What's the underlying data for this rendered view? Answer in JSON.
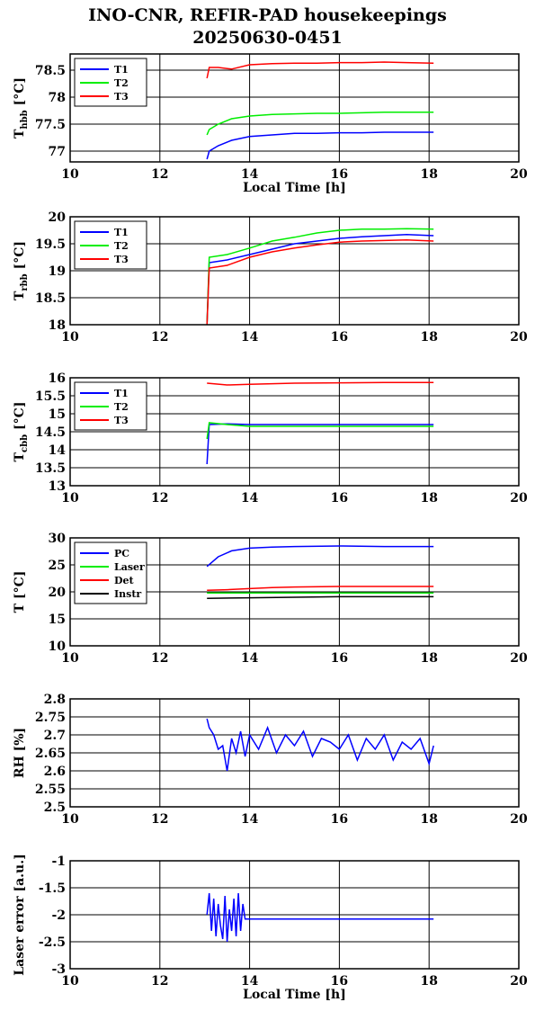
{
  "title_line1": "INO-CNR, REFIR-PAD housekeepings",
  "title_line2": "20250630-0451",
  "colors": {
    "blue": "#0000ff",
    "green": "#00ee00",
    "red": "#ff0000",
    "black": "#000000"
  },
  "chart_data": [
    {
      "type": "line",
      "ylabel": "T_hbb [°C]",
      "ylabel_main": "T",
      "ylabel_sub": "hbb",
      "ylabel_unit": "[°C]",
      "xlabel": "Local Time [h]",
      "xlim": [
        10,
        20
      ],
      "ylim": [
        76.8,
        78.8
      ],
      "x_ticks": [
        "10",
        "12",
        "14",
        "16",
        "18",
        "20"
      ],
      "y_ticks": [
        {
          "v": 77,
          "label": "77"
        },
        {
          "v": 77.5,
          "label": "77.5"
        },
        {
          "v": 78,
          "label": "78"
        },
        {
          "v": 78.5,
          "label": "78.5"
        }
      ],
      "grid": true,
      "legend_position": "top-left",
      "series": [
        {
          "name": "T1",
          "color": "#0000ff",
          "x": [
            13.05,
            13.1,
            13.3,
            13.6,
            14.0,
            14.5,
            15.0,
            15.5,
            16.0,
            16.5,
            17.0,
            17.5,
            18.1
          ],
          "y": [
            76.85,
            77.0,
            77.1,
            77.2,
            77.27,
            77.3,
            77.33,
            77.33,
            77.34,
            77.34,
            77.35,
            77.35,
            77.35
          ]
        },
        {
          "name": "T2",
          "color": "#00ee00",
          "x": [
            13.05,
            13.1,
            13.3,
            13.6,
            14.0,
            14.5,
            15.0,
            15.5,
            16.0,
            16.5,
            17.0,
            17.5,
            18.1
          ],
          "y": [
            77.3,
            77.4,
            77.5,
            77.6,
            77.65,
            77.68,
            77.69,
            77.7,
            77.7,
            77.71,
            77.72,
            77.72,
            77.72
          ]
        },
        {
          "name": "T3",
          "color": "#ff0000",
          "x": [
            13.05,
            13.1,
            13.3,
            13.6,
            14.0,
            14.5,
            15.0,
            15.5,
            16.0,
            16.5,
            17.0,
            17.5,
            18.1
          ],
          "y": [
            78.35,
            78.55,
            78.55,
            78.52,
            78.6,
            78.62,
            78.63,
            78.63,
            78.64,
            78.64,
            78.65,
            78.64,
            78.63
          ]
        }
      ]
    },
    {
      "type": "line",
      "ylabel": "T_rbb [°C]",
      "ylabel_main": "T",
      "ylabel_sub": "rbb",
      "ylabel_unit": "[°C]",
      "xlabel": "",
      "xlim": [
        10,
        20
      ],
      "ylim": [
        18,
        20
      ],
      "x_ticks": [
        "10",
        "12",
        "14",
        "16",
        "18",
        "20"
      ],
      "y_ticks": [
        {
          "v": 18,
          "label": "18"
        },
        {
          "v": 18.5,
          "label": "18.5"
        },
        {
          "v": 19,
          "label": "19"
        },
        {
          "v": 19.5,
          "label": "19.5"
        },
        {
          "v": 20,
          "label": "20"
        }
      ],
      "grid": true,
      "legend_position": "top-left",
      "series": [
        {
          "name": "T1",
          "color": "#0000ff",
          "x": [
            13.05,
            13.1,
            13.5,
            14.0,
            14.5,
            15.0,
            15.5,
            16.0,
            16.5,
            17.0,
            17.5,
            18.1
          ],
          "y": [
            18.0,
            19.15,
            19.2,
            19.3,
            19.4,
            19.5,
            19.55,
            19.6,
            19.63,
            19.65,
            19.67,
            19.65
          ]
        },
        {
          "name": "T2",
          "color": "#00ee00",
          "x": [
            13.05,
            13.1,
            13.5,
            14.0,
            14.5,
            15.0,
            15.5,
            16.0,
            16.5,
            17.0,
            17.5,
            18.1
          ],
          "y": [
            18.0,
            19.25,
            19.3,
            19.42,
            19.55,
            19.62,
            19.7,
            19.75,
            19.77,
            19.77,
            19.78,
            19.77
          ]
        },
        {
          "name": "T3",
          "color": "#ff0000",
          "x": [
            13.05,
            13.1,
            13.5,
            14.0,
            14.5,
            15.0,
            15.5,
            16.0,
            16.5,
            17.0,
            17.5,
            18.1
          ],
          "y": [
            18.0,
            19.05,
            19.1,
            19.25,
            19.35,
            19.42,
            19.48,
            19.53,
            19.55,
            19.56,
            19.57,
            19.55
          ]
        }
      ]
    },
    {
      "type": "line",
      "ylabel": "T_cbb [°C]",
      "ylabel_main": "T",
      "ylabel_sub": "cbb",
      "ylabel_unit": "[°C]",
      "xlabel": "",
      "xlim": [
        10,
        20
      ],
      "ylim": [
        13,
        16
      ],
      "x_ticks": [
        "10",
        "12",
        "14",
        "16",
        "18",
        "20"
      ],
      "y_ticks": [
        {
          "v": 13,
          "label": "13"
        },
        {
          "v": 13.5,
          "label": "13.5"
        },
        {
          "v": 14,
          "label": "14"
        },
        {
          "v": 14.5,
          "label": "14.5"
        },
        {
          "v": 15,
          "label": "15"
        },
        {
          "v": 15.5,
          "label": "15.5"
        },
        {
          "v": 16,
          "label": "16"
        }
      ],
      "grid": true,
      "legend_position": "top-left",
      "series": [
        {
          "name": "T1",
          "color": "#0000ff",
          "x": [
            13.05,
            13.1,
            13.5,
            14.0,
            15.0,
            16.0,
            17.0,
            18.1
          ],
          "y": [
            13.6,
            14.7,
            14.72,
            14.7,
            14.7,
            14.7,
            14.7,
            14.7
          ]
        },
        {
          "name": "T2",
          "color": "#00ee00",
          "x": [
            13.05,
            13.1,
            13.5,
            14.0,
            15.0,
            16.0,
            17.0,
            18.1
          ],
          "y": [
            14.3,
            14.75,
            14.7,
            14.65,
            14.65,
            14.65,
            14.65,
            14.65
          ]
        },
        {
          "name": "T3",
          "color": "#ff0000",
          "x": [
            13.05,
            13.5,
            14.0,
            15.0,
            16.0,
            17.0,
            18.1
          ],
          "y": [
            15.85,
            15.8,
            15.82,
            15.85,
            15.86,
            15.87,
            15.87
          ]
        }
      ]
    },
    {
      "type": "line",
      "ylabel": "T [°C]",
      "ylabel_main": "T [°C]",
      "ylabel_sub": "",
      "ylabel_unit": "",
      "xlabel": "",
      "xlim": [
        10,
        20
      ],
      "ylim": [
        10,
        30
      ],
      "x_ticks": [
        "10",
        "12",
        "14",
        "16",
        "18",
        "20"
      ],
      "y_ticks": [
        {
          "v": 10,
          "label": "10"
        },
        {
          "v": 15,
          "label": "15"
        },
        {
          "v": 20,
          "label": "20"
        },
        {
          "v": 25,
          "label": "25"
        },
        {
          "v": 30,
          "label": "30"
        }
      ],
      "grid": true,
      "legend_position": "top-left",
      "series": [
        {
          "name": "PC",
          "color": "#0000ff",
          "x": [
            13.05,
            13.3,
            13.6,
            14.0,
            14.5,
            15.0,
            16.0,
            17.0,
            18.1
          ],
          "y": [
            24.7,
            26.5,
            27.6,
            28.1,
            28.3,
            28.4,
            28.5,
            28.4,
            28.4
          ]
        },
        {
          "name": "Laser",
          "color": "#00ee00",
          "x": [
            13.05,
            14.0,
            15.0,
            16.0,
            17.0,
            18.1
          ],
          "y": [
            19.8,
            19.8,
            19.8,
            19.8,
            19.8,
            19.8
          ]
        },
        {
          "name": "Det",
          "color": "#ff0000",
          "x": [
            13.05,
            13.5,
            14.0,
            14.5,
            15.0,
            16.0,
            17.0,
            18.1
          ],
          "y": [
            20.3,
            20.4,
            20.6,
            20.8,
            20.9,
            21.0,
            21.0,
            21.0
          ]
        },
        {
          "name": "Instr",
          "color": "#000000",
          "x": [
            13.05,
            14.0,
            15.0,
            16.0,
            17.0,
            18.1
          ],
          "y": [
            18.8,
            18.9,
            19.0,
            19.1,
            19.1,
            19.1
          ]
        }
      ]
    },
    {
      "type": "line",
      "ylabel": "RH [%]",
      "ylabel_main": "RH [%]",
      "ylabel_sub": "",
      "ylabel_unit": "",
      "xlabel": "",
      "xlim": [
        10,
        20
      ],
      "ylim": [
        2.5,
        2.8
      ],
      "x_ticks": [
        "10",
        "12",
        "14",
        "16",
        "18",
        "20"
      ],
      "y_ticks": [
        {
          "v": 2.5,
          "label": "2.5"
        },
        {
          "v": 2.55,
          "label": "2.55"
        },
        {
          "v": 2.6,
          "label": "2.6"
        },
        {
          "v": 2.65,
          "label": "2.65"
        },
        {
          "v": 2.7,
          "label": "2.7"
        },
        {
          "v": 2.75,
          "label": "2.75"
        },
        {
          "v": 2.8,
          "label": "2.8"
        }
      ],
      "grid": true,
      "legend_position": "none",
      "series": [
        {
          "color": "#0000ff",
          "x": [
            13.05,
            13.1,
            13.2,
            13.3,
            13.4,
            13.5,
            13.6,
            13.7,
            13.8,
            13.9,
            14.0,
            14.2,
            14.4,
            14.6,
            14.8,
            15.0,
            15.2,
            15.4,
            15.6,
            15.8,
            16.0,
            16.2,
            16.4,
            16.6,
            16.8,
            17.0,
            17.2,
            17.4,
            17.6,
            17.8,
            18.0,
            18.1
          ],
          "y": [
            2.745,
            2.72,
            2.7,
            2.66,
            2.67,
            2.6,
            2.69,
            2.65,
            2.71,
            2.64,
            2.7,
            2.66,
            2.72,
            2.65,
            2.7,
            2.67,
            2.71,
            2.64,
            2.69,
            2.68,
            2.66,
            2.7,
            2.63,
            2.69,
            2.66,
            2.7,
            2.63,
            2.68,
            2.66,
            2.69,
            2.62,
            2.67
          ]
        }
      ]
    },
    {
      "type": "line",
      "ylabel": "Laser error [a.u.]",
      "ylabel_main": "Laser error [a.u.]",
      "ylabel_sub": "",
      "ylabel_unit": "",
      "xlabel": "Local Time [h]",
      "xlim": [
        10,
        20
      ],
      "ylim": [
        -3,
        -1
      ],
      "x_ticks": [
        "10",
        "12",
        "14",
        "16",
        "18",
        "20"
      ],
      "y_ticks": [
        {
          "v": -3,
          "label": "-3"
        },
        {
          "v": -2.5,
          "label": "-2.5"
        },
        {
          "v": -2,
          "label": "-2"
        },
        {
          "v": -1.5,
          "label": "-1.5"
        },
        {
          "v": -1,
          "label": "-1"
        }
      ],
      "grid": true,
      "legend_position": "none",
      "series": [
        {
          "color": "#0000ff",
          "x": [
            13.05,
            13.1,
            13.15,
            13.2,
            13.25,
            13.3,
            13.35,
            13.4,
            13.45,
            13.5,
            13.55,
            13.6,
            13.65,
            13.7,
            13.75,
            13.8,
            13.85,
            13.9,
            14.0,
            15.0,
            16.0,
            17.0,
            18.1
          ],
          "y": [
            -2.0,
            -1.6,
            -2.3,
            -1.7,
            -2.4,
            -1.8,
            -2.2,
            -2.45,
            -1.65,
            -2.5,
            -1.9,
            -2.3,
            -1.7,
            -2.4,
            -1.6,
            -2.3,
            -1.8,
            -2.08,
            -2.08,
            -2.08,
            -2.08,
            -2.08,
            -2.08
          ]
        }
      ]
    }
  ]
}
